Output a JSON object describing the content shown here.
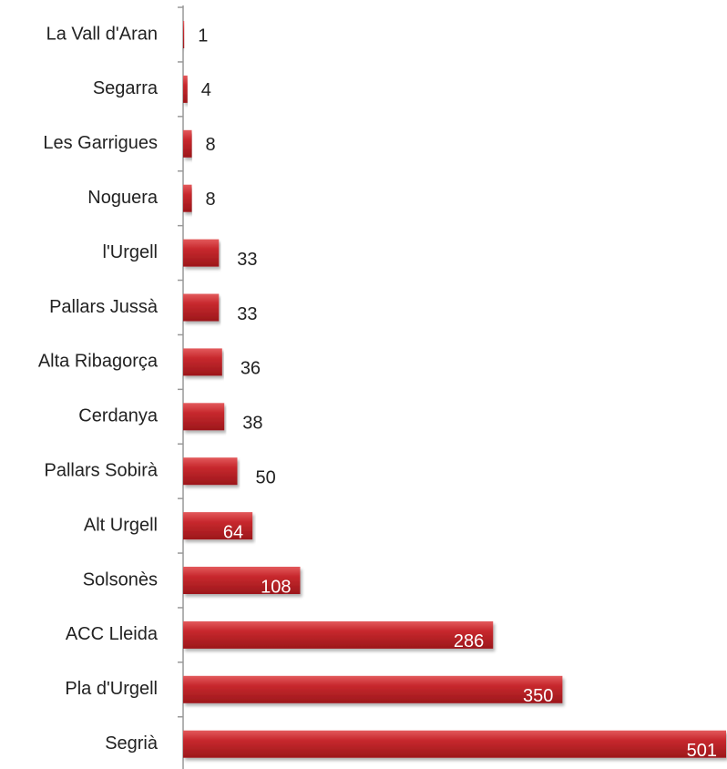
{
  "chart_data": {
    "type": "bar",
    "orientation": "horizontal",
    "categories": [
      "La Vall d'Aran",
      "Segarra",
      "Les Garrigues",
      "Noguera",
      "l'Urgell",
      "Pallars Jussà",
      "Alta Ribagorça",
      "Cerdanya",
      "Pallars Sobirà",
      "Alt Urgell",
      "Solsonès",
      "ACC Lleida",
      "Pla d'Urgell",
      "Segrià"
    ],
    "values": [
      1,
      4,
      8,
      8,
      33,
      33,
      36,
      38,
      50,
      64,
      108,
      286,
      350,
      501
    ],
    "color": "#c0282d",
    "xlim": [
      0,
      501
    ]
  }
}
